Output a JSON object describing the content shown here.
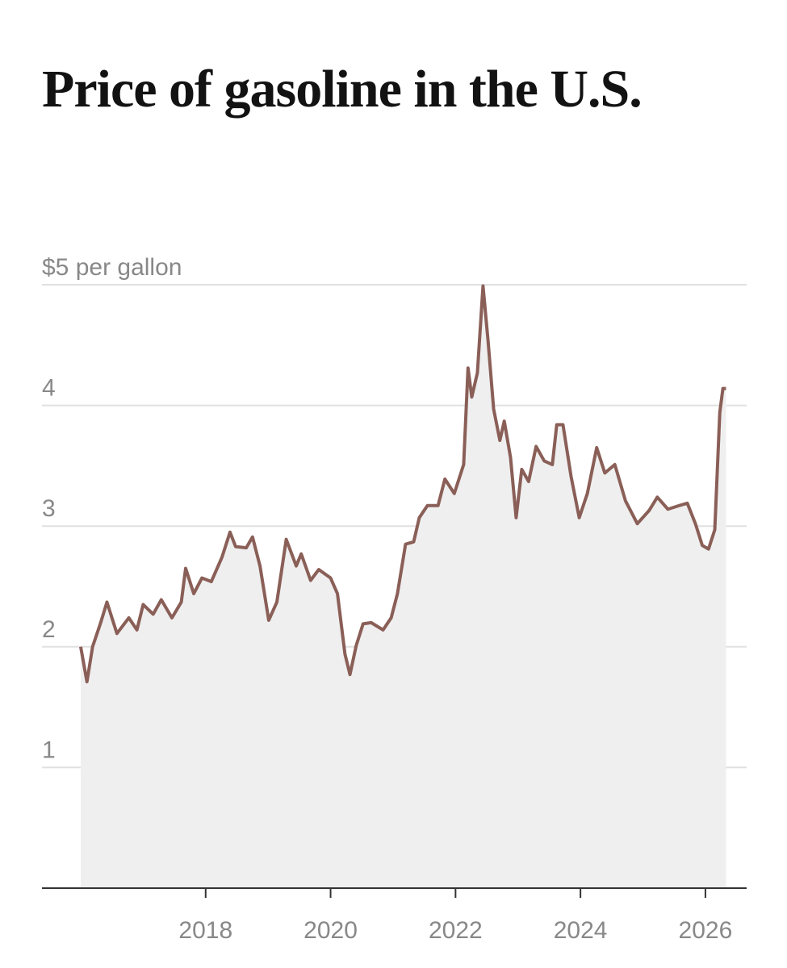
{
  "chart_data": {
    "type": "area",
    "title": "Price of gasoline in the U.S.",
    "x": [
      2016.0,
      2016.1,
      2016.19,
      2016.32,
      2016.42,
      2016.58,
      2016.77,
      2016.9,
      2017.0,
      2017.16,
      2017.29,
      2017.46,
      2017.61,
      2017.68,
      2017.81,
      2017.94,
      2018.09,
      2018.26,
      2018.39,
      2018.48,
      2018.65,
      2018.75,
      2018.87,
      2019.01,
      2019.14,
      2019.29,
      2019.45,
      2019.53,
      2019.68,
      2019.81,
      2020.0,
      2020.11,
      2020.23,
      2020.31,
      2020.41,
      2020.52,
      2020.65,
      2020.84,
      2020.97,
      2021.07,
      2021.2,
      2021.33,
      2021.42,
      2021.55,
      2021.72,
      2021.83,
      2021.98,
      2022.13,
      2022.2,
      2022.26,
      2022.35,
      2022.44,
      2022.52,
      2022.61,
      2022.71,
      2022.78,
      2022.88,
      2022.97,
      2023.06,
      2023.17,
      2023.29,
      2023.42,
      2023.55,
      2023.62,
      2023.72,
      2023.85,
      2023.98,
      2024.11,
      2024.26,
      2024.39,
      2024.55,
      2024.72,
      2024.91,
      2025.1,
      2025.23,
      2025.4,
      2025.58,
      2025.71,
      2025.84,
      2025.95,
      2026.05,
      2026.15,
      2026.23,
      2026.28,
      2026.33
    ],
    "values": [
      2.0,
      1.71,
      2.0,
      2.2,
      2.37,
      2.11,
      2.24,
      2.14,
      2.35,
      2.27,
      2.39,
      2.24,
      2.37,
      2.65,
      2.44,
      2.57,
      2.54,
      2.74,
      2.95,
      2.83,
      2.82,
      2.91,
      2.67,
      2.22,
      2.37,
      2.89,
      2.67,
      2.77,
      2.55,
      2.64,
      2.57,
      2.44,
      1.94,
      1.77,
      2.01,
      2.19,
      2.2,
      2.14,
      2.24,
      2.44,
      2.85,
      2.87,
      3.07,
      3.17,
      3.17,
      3.39,
      3.27,
      3.51,
      4.31,
      4.07,
      4.27,
      4.99,
      4.54,
      3.97,
      3.71,
      3.87,
      3.57,
      3.07,
      3.47,
      3.37,
      3.66,
      3.54,
      3.51,
      3.84,
      3.84,
      3.41,
      3.07,
      3.27,
      3.65,
      3.44,
      3.51,
      3.21,
      3.02,
      3.13,
      3.24,
      3.14,
      3.17,
      3.19,
      3.02,
      2.84,
      2.81,
      2.97,
      3.94,
      4.14,
      4.14
    ],
    "color": "#8a5f57",
    "fill": "#efefef",
    "xlim": [
      2015.38,
      2026.66
    ],
    "xticks": [
      2018,
      2020,
      2022,
      2024,
      2026
    ],
    "ylim": [
      0,
      5
    ],
    "yticks": [
      1,
      2,
      3,
      4,
      {
        "value": 5,
        "label": "$5 per gallon"
      }
    ],
    "grid": true
  }
}
